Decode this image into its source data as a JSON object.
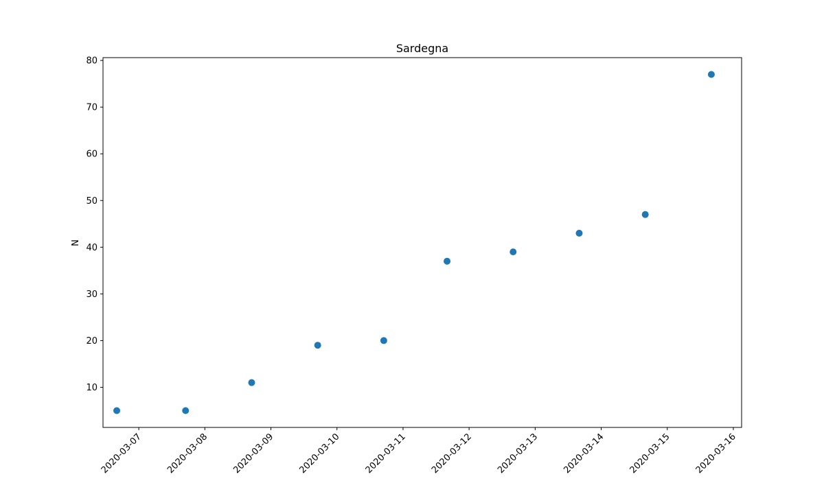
{
  "chart_data": {
    "type": "scatter",
    "title": "Sardegna",
    "xlabel": "",
    "ylabel": "N",
    "x": [
      "2020-03-06 16:00",
      "2020-03-07 17:00",
      "2020-03-08 17:00",
      "2020-03-09 17:00",
      "2020-03-10 17:00",
      "2020-03-11 16:00",
      "2020-03-12 16:00",
      "2020-03-13 16:00",
      "2020-03-14 16:00",
      "2020-03-15 16:00"
    ],
    "y": [
      5,
      5,
      11,
      19,
      20,
      37,
      39,
      43,
      47,
      77
    ],
    "xticks": [
      "2020-03-07",
      "2020-03-08",
      "2020-03-09",
      "2020-03-10",
      "2020-03-11",
      "2020-03-12",
      "2020-03-13",
      "2020-03-14",
      "2020-03-15",
      "2020-03-16"
    ],
    "yticks": [
      10,
      20,
      30,
      40,
      50,
      60,
      70,
      80
    ],
    "xlim": [
      "2020-03-06 11:00",
      "2020-03-16 03:00"
    ],
    "ylim": [
      1.4,
      80.6
    ],
    "grid": false,
    "marker_color": "#1f77b4"
  }
}
